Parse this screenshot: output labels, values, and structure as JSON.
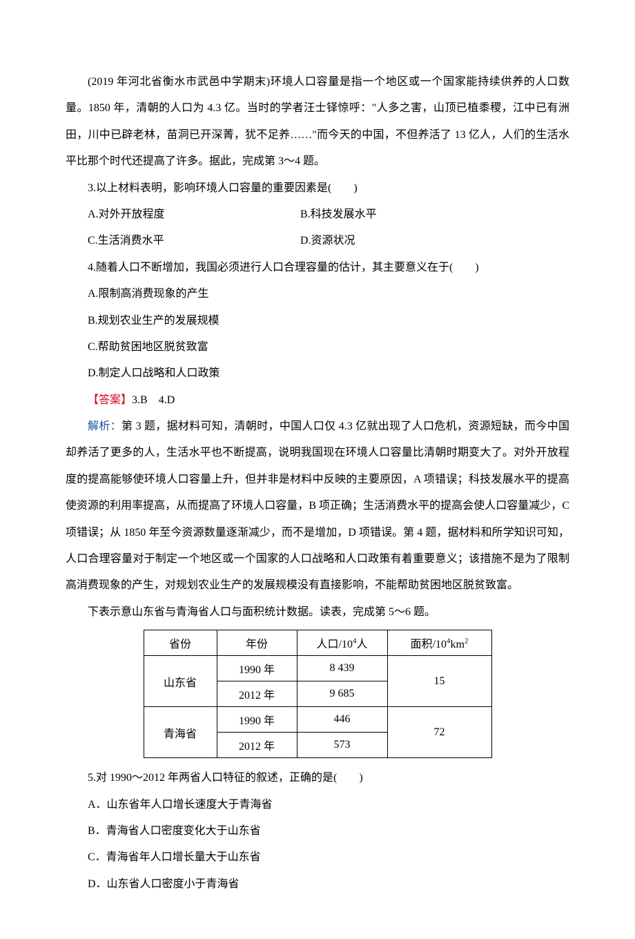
{
  "intro": {
    "p1": "(2019 年河北省衡水市武邑中学期末)环境人口容量是指一个地区或一个国家能持续供养的人口数量。1850 年，清朝的人口为 4.3 亿。当时的学者汪士铎惊呼：\"人多之害，山顶已植黍稷，江中已有洲田，川中已辟老林，苗洞已开深菁，犹不足养……\"而今天的中国，不但养活了 13 亿人，人们的生活水平比那个时代还提高了许多。据此，完成第 3～4 题。"
  },
  "q3": {
    "stem": "3.以上材料表明，影响环境人口容量的重要因素是(　　)",
    "optA": "A.对外开放程度",
    "optB": "B.科技发展水平",
    "optC": "C.生活消费水平",
    "optD": "D.资源状况"
  },
  "q4": {
    "stem": "4.随着人口不断增加，我国必须进行人口合理容量的估计，其主要意义在于(　　)",
    "optA": "A.限制高消费现象的产生",
    "optB": "B.规划农业生产的发展规模",
    "optC": "C.帮助贫困地区脱贫致富",
    "optD": "D.制定人口战略和人口政策"
  },
  "answer34": {
    "label": "【答案】",
    "text": "3.B　4.D"
  },
  "analysis34": {
    "label": "解析：",
    "text": "第 3 题，据材料可知，清朝时，中国人口仅 4.3 亿就出现了人口危机，资源短缺，而今中国却养活了更多的人，生活水平也不断提高，说明我国现在环境人口容量比清朝时期变大了。对外开放程度的提高能够使环境人口容量上升，但并非是材料中反映的主要原因，A 项错误；科技发展水平的提高使资源的利用率提高，从而提高了环境人口容量，B 项正确；生活消费水平的提高会使人口容量减少，C 项错误；从 1850 年至今资源数量逐渐减少，而不是增加，D 项错误。第 4 题，据材料和所学知识可知，人口合理容量对于制定一个地区或一个国家的人口战略和人口政策有着重要意义；该措施不是为了限制高消费现象的产生，对规划农业生产的发展规模没有直接影响，不能帮助贫困地区脱贫致富。"
  },
  "table_intro": "下表示意山东省与青海省人口与面积统计数据。读表，完成第 5～6 题。",
  "table": {
    "headers": {
      "province": "省份",
      "year": "年份",
      "population_label": "人口/10",
      "population_sup": "4",
      "population_unit": "人",
      "area_label": "面积/10",
      "area_sup": "4",
      "area_unit": "km",
      "area_unit_sup": "2"
    },
    "rows": [
      {
        "province": "山东省",
        "year": "1990 年",
        "pop": "8 439",
        "area": "15"
      },
      {
        "province": "",
        "year": "2012 年",
        "pop": "9 685",
        "area": ""
      },
      {
        "province": "青海省",
        "year": "1990 年",
        "pop": "446",
        "area": "72"
      },
      {
        "province": "",
        "year": "2012 年",
        "pop": "573",
        "area": ""
      }
    ]
  },
  "q5": {
    "stem": "5.对 1990～2012 年两省人口特征的叙述，正确的是(　　)",
    "optA": "A．山东省年人口增长速度大于青海省",
    "optB": "B．青海省人口密度变化大于山东省",
    "optC": "C．青海省年人口增长量大于山东省",
    "optD": "D．山东省人口密度小于青海省"
  },
  "colors": {
    "answer": "#d9001b",
    "analysis": "#1e50a2",
    "text": "#000000",
    "background": "#ffffff"
  }
}
